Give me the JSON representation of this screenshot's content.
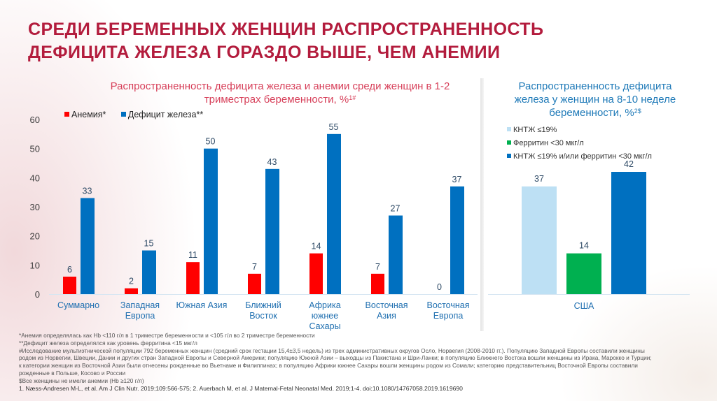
{
  "title": {
    "line1": "СРЕДИ БЕРЕМЕННЫХ ЖЕНЩИН РАСПРОСТРАНЕННОСТЬ",
    "line2": "ДЕФИЦИТА ЖЕЛЕЗА ГОРАЗДО ВЫШЕ, ЧЕМ АНЕМИИ"
  },
  "colors": {
    "title": "#b31c3d",
    "anemia": "#ff0000",
    "iron_deficiency": "#0070c0",
    "tsat": "#bde0f4",
    "ferritin": "#00b050",
    "tsat_or_ferritin": "#0070c0"
  },
  "chart_data": [
    {
      "type": "bar",
      "title": "Распространенность дефицита железа и анемии среди женщин в 1-2",
      "title_line2": "триместрах беременности, %",
      "title_sup": "1#",
      "ylim": [
        0,
        60
      ],
      "yticks": [
        "0",
        "10",
        "20",
        "30",
        "40",
        "50",
        "60"
      ],
      "legend_position": "top-left",
      "categories": [
        [
          "Суммарно"
        ],
        [
          "Западная",
          "Европа"
        ],
        [
          "Южная Азия"
        ],
        [
          "Ближний",
          "Восток"
        ],
        [
          "Африка",
          "южнее",
          "Сахары"
        ],
        [
          "Восточная",
          "Азия"
        ],
        [
          "Восточная",
          "Европа"
        ]
      ],
      "series": [
        {
          "name": "Анемия*",
          "color": "#ff0000",
          "values": [
            6,
            2,
            11,
            7,
            14,
            7,
            0
          ]
        },
        {
          "name": "Дефицит железа**",
          "color": "#0070c0",
          "values": [
            33,
            15,
            50,
            43,
            55,
            27,
            37
          ]
        }
      ]
    },
    {
      "type": "bar",
      "title_lines": [
        "Распространенность дефицита",
        "железа у женщин на 8-10 неделе",
        "беременности, %"
      ],
      "title_sup": "2$",
      "ylim": [
        0,
        60
      ],
      "legend_position": "top-left",
      "categories": [
        "США"
      ],
      "series": [
        {
          "name": "КНТЖ ≤19%",
          "color": "#bde0f4",
          "values": [
            37
          ]
        },
        {
          "name": "Ферритин <30 мкг/л",
          "color": "#00b050",
          "values": [
            14
          ]
        },
        {
          "name": "КНТЖ ≤19% и/или ферритин <30 мкг/л",
          "color": "#0070c0",
          "values": [
            42
          ]
        }
      ]
    }
  ],
  "footnotes": [
    "*Анемия определялась как Hb <110 г/л в 1 триместре беременности и <105 г/л во 2 триместре беременности",
    "**Дефицит железа определялся как уровень ферритина <15 мкг/л",
    "#Исследование мультиэтнической популяции 792 беременных женщин (средний срок гестации 15,4±3,5 недель) из трех административных округов Осло, Норвегия (2008-2010 гг.). Популяцию Западной Европы составили женщины",
    "родом из Норвегии, Швеции, Дании и других стран Западной Европы и Северной Америки; популяцию Южной Азии – выходцы из Пакистана и Шри-Ланки; в популяцию Ближнего Востока вошли женщины из Ирака, Марокко и Турции;",
    "к категории женщин из Восточной Азии были отнесены рожденные во Вьетнаме и Филиппинах; в популяцию Африки южнее Сахары вошли женщины родом из Сомали; категорию представительниц Восточной Европы составили",
    "рожденные в Польше, Косово и России",
    "$Все женщины не имели анемии (Hb ≥120 г/л)"
  ],
  "references": "1. Næss-Andresen M-L, et al. Am J Clin Nutr. 2019;109:566-575; 2. Auerbach M, et al. J Maternal-Fetal Neonatal Med. 2019;1-4. doi:10.1080/14767058.2019.1619690"
}
